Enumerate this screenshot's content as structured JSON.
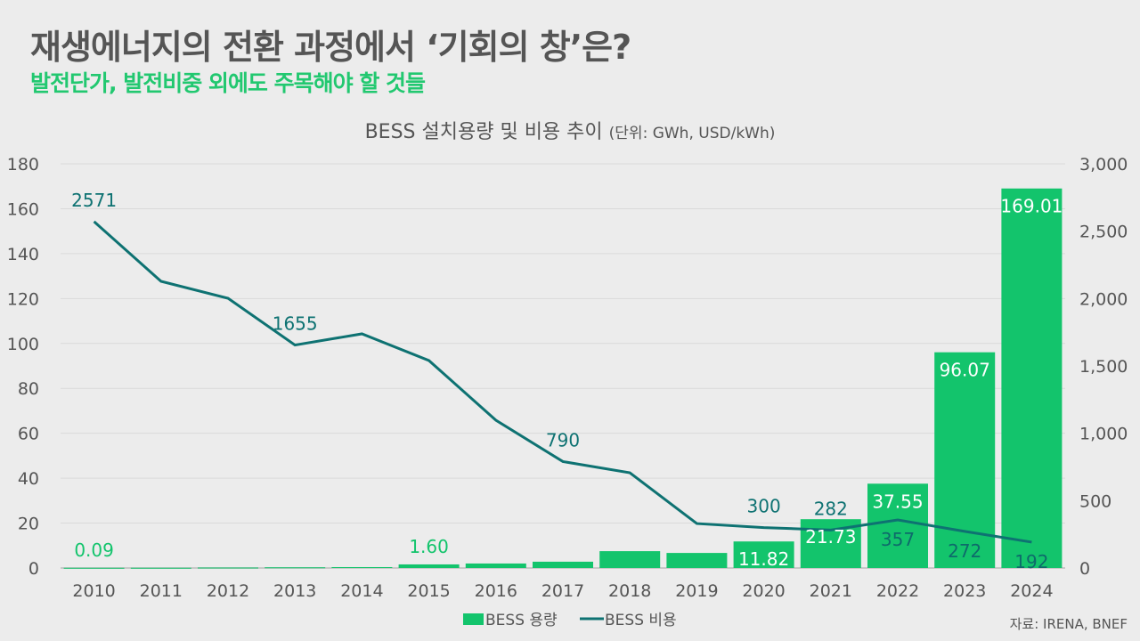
{
  "header": {
    "title": "재생에너지의 전환 과정에서 ‘기회의 창’은?",
    "subtitle": "발전단가, 발전비중 외에도 주목해야 할 것들"
  },
  "source": "자료: IRENA, BNEF",
  "chart_data": {
    "type": "bar+line",
    "title": "BESS 설치용량 및 비용 추이",
    "unit": "(단위: GWh, USD/kWh)",
    "categories": [
      "2010",
      "2011",
      "2012",
      "2013",
      "2014",
      "2015",
      "2016",
      "2017",
      "2018",
      "2019",
      "2020",
      "2021",
      "2022",
      "2023",
      "2024"
    ],
    "series": [
      {
        "name": "BESS 용량",
        "type": "bar",
        "axis": "left",
        "color": "#13c46c",
        "values": [
          0.09,
          0.1,
          0.2,
          0.3,
          0.4,
          1.6,
          2.0,
          2.8,
          7.5,
          6.7,
          11.82,
          21.73,
          37.55,
          96.07,
          169.01
        ],
        "labels": [
          "0.09",
          "",
          "",
          "",
          "",
          "1.60",
          "",
          "",
          "",
          "",
          "11.82",
          "21.73",
          "37.55",
          "96.07",
          "169.01"
        ]
      },
      {
        "name": "BESS 비용",
        "type": "line",
        "axis": "right",
        "color": "#0e7272",
        "values": [
          2571,
          2128,
          2002,
          1655,
          1738,
          1540,
          1097,
          790,
          707,
          330,
          300,
          282,
          357,
          272,
          192
        ],
        "labels": [
          "2571",
          "",
          "",
          "1655",
          "",
          "",
          "",
          "790",
          "",
          "",
          "300",
          "282",
          "357",
          "272",
          "192"
        ]
      }
    ],
    "left_axis": {
      "ylim": [
        0,
        180
      ],
      "ticks": [
        "0",
        "20",
        "40",
        "60",
        "80",
        "100",
        "120",
        "140",
        "160",
        "180"
      ]
    },
    "right_axis": {
      "ylim": [
        0,
        3000
      ],
      "ticks": [
        "0",
        "500",
        "1,000",
        "1,500",
        "2,000",
        "2,500",
        "3,000"
      ]
    },
    "grid": true,
    "legend": "bottom"
  }
}
